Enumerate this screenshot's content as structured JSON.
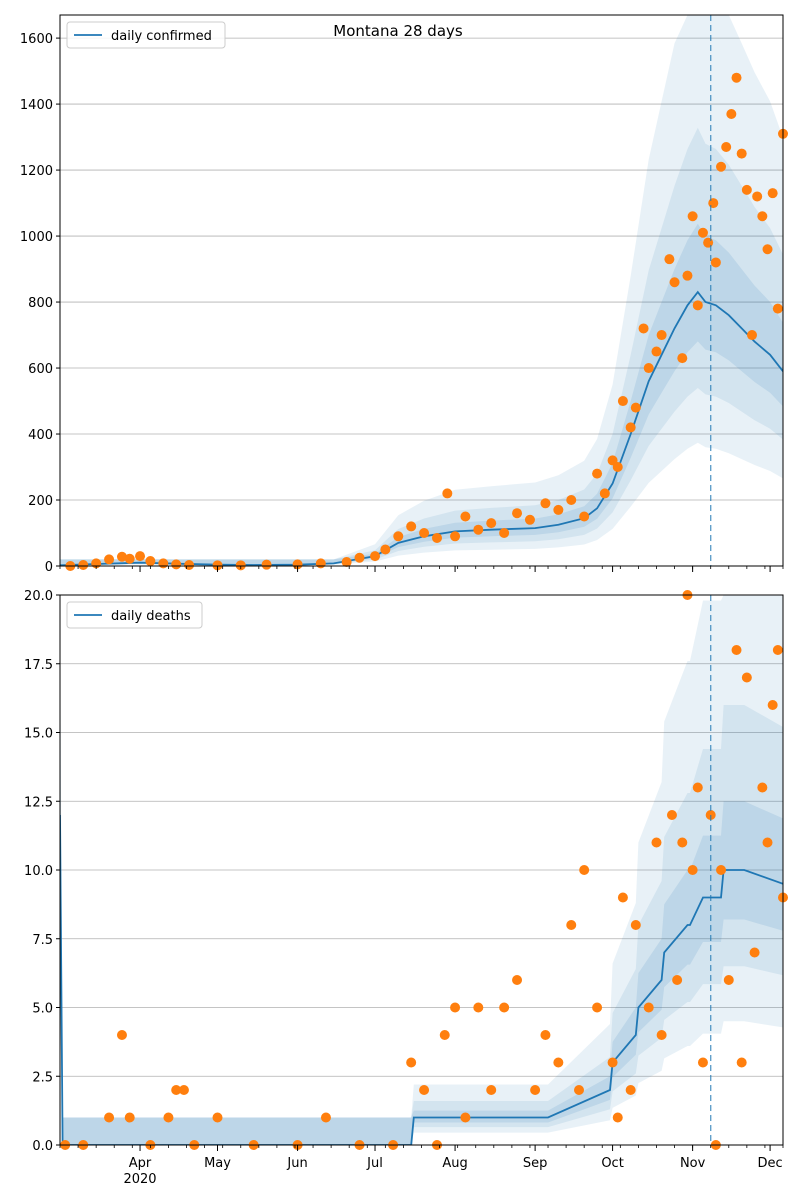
{
  "chart_data": [
    {
      "type": "line",
      "title": "Montana 28 days",
      "xlabel": "",
      "ylabel": "",
      "x_range": [
        "2020-03-01",
        "2020-12-06"
      ],
      "ylim": [
        0,
        1670
      ],
      "y_ticks": [
        0,
        200,
        400,
        600,
        800,
        1000,
        1200,
        1400,
        1600
      ],
      "grid": "horizontal",
      "legend": {
        "position": "top-left",
        "entries": [
          "daily confirmed"
        ]
      },
      "forecast_start": "2020-11-08",
      "colors": {
        "line": "#1f77b4",
        "points": "#ff7f0e",
        "band": "#1f77b4"
      },
      "series": [
        {
          "name": "daily confirmed",
          "kind": "line",
          "x": [
            "2020-03-01",
            "2020-03-15",
            "2020-04-01",
            "2020-04-15",
            "2020-05-01",
            "2020-05-15",
            "2020-06-01",
            "2020-06-15",
            "2020-07-01",
            "2020-07-10",
            "2020-07-20",
            "2020-08-01",
            "2020-08-15",
            "2020-09-01",
            "2020-09-10",
            "2020-09-20",
            "2020-09-25",
            "2020-10-01",
            "2020-10-08",
            "2020-10-15",
            "2020-10-20",
            "2020-10-25",
            "2020-10-30",
            "2020-11-03",
            "2020-11-06",
            "2020-11-10",
            "2020-11-15",
            "2020-11-20",
            "2020-11-25",
            "2020-12-01",
            "2020-12-06"
          ],
          "y": [
            2,
            6,
            10,
            7,
            4,
            3,
            4,
            8,
            30,
            70,
            90,
            105,
            110,
            115,
            125,
            145,
            175,
            250,
            400,
            560,
            640,
            720,
            790,
            830,
            800,
            790,
            760,
            720,
            680,
            640,
            590
          ]
        },
        {
          "name": "",
          "kind": "scatter",
          "x": [
            "2020-03-05",
            "2020-03-10",
            "2020-03-15",
            "2020-03-20",
            "2020-03-25",
            "2020-03-28",
            "2020-04-01",
            "2020-04-05",
            "2020-04-10",
            "2020-04-15",
            "2020-04-20",
            "2020-05-01",
            "2020-05-10",
            "2020-05-20",
            "2020-06-01",
            "2020-06-10",
            "2020-06-20",
            "2020-06-25",
            "2020-07-01",
            "2020-07-05",
            "2020-07-10",
            "2020-07-15",
            "2020-07-20",
            "2020-07-25",
            "2020-07-29",
            "2020-08-01",
            "2020-08-05",
            "2020-08-10",
            "2020-08-15",
            "2020-08-20",
            "2020-08-25",
            "2020-08-30",
            "2020-09-05",
            "2020-09-10",
            "2020-09-15",
            "2020-09-20",
            "2020-09-25",
            "2020-09-28",
            "2020-10-01",
            "2020-10-03",
            "2020-10-05",
            "2020-10-08",
            "2020-10-10",
            "2020-10-13",
            "2020-10-15",
            "2020-10-18",
            "2020-10-20",
            "2020-10-23",
            "2020-10-25",
            "2020-10-28",
            "2020-10-30",
            "2020-11-01",
            "2020-11-03",
            "2020-11-05",
            "2020-11-07",
            "2020-11-09",
            "2020-11-10",
            "2020-11-12",
            "2020-11-14",
            "2020-11-16",
            "2020-11-18",
            "2020-11-20",
            "2020-11-22",
            "2020-11-24",
            "2020-11-26",
            "2020-11-28",
            "2020-11-30",
            "2020-12-02",
            "2020-12-04",
            "2020-12-06"
          ],
          "y": [
            0,
            3,
            8,
            20,
            28,
            22,
            30,
            15,
            8,
            5,
            3,
            2,
            2,
            4,
            5,
            8,
            12,
            25,
            30,
            50,
            90,
            120,
            100,
            85,
            220,
            90,
            150,
            110,
            130,
            100,
            160,
            140,
            190,
            170,
            200,
            150,
            280,
            220,
            320,
            300,
            500,
            420,
            480,
            720,
            600,
            650,
            700,
            930,
            860,
            630,
            880,
            1060,
            790,
            1010,
            980,
            1100,
            920,
            1210,
            1270,
            1370,
            1480,
            1250,
            1140,
            700,
            1120,
            1060,
            960,
            1130,
            780,
            1310
          ]
        }
      ]
    },
    {
      "type": "line",
      "title": "",
      "xlabel": "",
      "ylabel": "",
      "x_range": [
        "2020-03-01",
        "2020-12-06"
      ],
      "ylim": [
        0,
        20
      ],
      "y_ticks": [
        0.0,
        2.5,
        5.0,
        7.5,
        10.0,
        12.5,
        15.0,
        17.5,
        20.0
      ],
      "y_tick_labels": [
        "0.0",
        "2.5",
        "5.0",
        "7.5",
        "10.0",
        "12.5",
        "15.0",
        "17.5",
        "20.0"
      ],
      "x_ticks": [
        "Apr\n2020",
        "May",
        "Jun",
        "Jul",
        "Aug",
        "Sep",
        "Oct",
        "Nov",
        "Dec"
      ],
      "grid": "horizontal",
      "legend": {
        "position": "top-left",
        "entries": [
          "daily deaths"
        ]
      },
      "forecast_start": "2020-11-08",
      "colors": {
        "line": "#1f77b4",
        "points": "#ff7f0e",
        "band": "#1f77b4"
      },
      "series": [
        {
          "name": "daily deaths",
          "kind": "line",
          "x": [
            "2020-03-01",
            "2020-03-02",
            "2020-07-15",
            "2020-07-16",
            "2020-08-25",
            "2020-08-26",
            "2020-09-05",
            "2020-09-06",
            "2020-09-30",
            "2020-10-01",
            "2020-10-10",
            "2020-10-11",
            "2020-10-20",
            "2020-10-21",
            "2020-10-30",
            "2020-10-31",
            "2020-11-05",
            "2020-11-06",
            "2020-11-12",
            "2020-11-13",
            "2020-11-20",
            "2020-11-21",
            "2020-12-06"
          ],
          "y": [
            12,
            0,
            0,
            1,
            1,
            1,
            1,
            1,
            2,
            3,
            4,
            5,
            6,
            7,
            8,
            8,
            9,
            9,
            9,
            10,
            10,
            10,
            9.5
          ]
        },
        {
          "name": "",
          "kind": "scatter",
          "x": [
            "2020-03-03",
            "2020-03-10",
            "2020-03-20",
            "2020-03-25",
            "2020-03-28",
            "2020-04-05",
            "2020-04-12",
            "2020-04-15",
            "2020-04-18",
            "2020-04-22",
            "2020-05-01",
            "2020-05-15",
            "2020-06-01",
            "2020-06-12",
            "2020-06-25",
            "2020-07-08",
            "2020-07-15",
            "2020-07-20",
            "2020-07-25",
            "2020-07-28",
            "2020-08-01",
            "2020-08-05",
            "2020-08-10",
            "2020-08-15",
            "2020-08-20",
            "2020-08-25",
            "2020-09-01",
            "2020-09-05",
            "2020-09-10",
            "2020-09-15",
            "2020-09-18",
            "2020-09-20",
            "2020-09-25",
            "2020-10-01",
            "2020-10-03",
            "2020-10-05",
            "2020-10-08",
            "2020-10-10",
            "2020-10-15",
            "2020-10-18",
            "2020-10-20",
            "2020-10-24",
            "2020-10-26",
            "2020-10-28",
            "2020-10-30",
            "2020-11-01",
            "2020-11-03",
            "2020-11-05",
            "2020-11-08",
            "2020-11-10",
            "2020-11-12",
            "2020-11-15",
            "2020-11-18",
            "2020-11-20",
            "2020-11-22",
            "2020-11-25",
            "2020-11-28",
            "2020-11-30",
            "2020-12-02",
            "2020-12-04",
            "2020-12-06"
          ],
          "y": [
            0,
            0,
            1,
            4,
            1,
            0,
            1,
            2,
            2,
            0,
            1,
            0,
            0,
            1,
            0,
            0,
            3,
            2,
            0,
            4,
            5,
            1,
            5,
            2,
            5,
            6,
            2,
            4,
            3,
            8,
            2,
            10,
            5,
            3,
            1,
            9,
            2,
            8,
            5,
            11,
            4,
            12,
            6,
            11,
            20,
            10,
            13,
            3,
            12,
            0,
            10,
            6,
            18,
            3,
            17,
            7,
            13,
            11,
            16,
            18,
            9
          ]
        }
      ]
    }
  ]
}
